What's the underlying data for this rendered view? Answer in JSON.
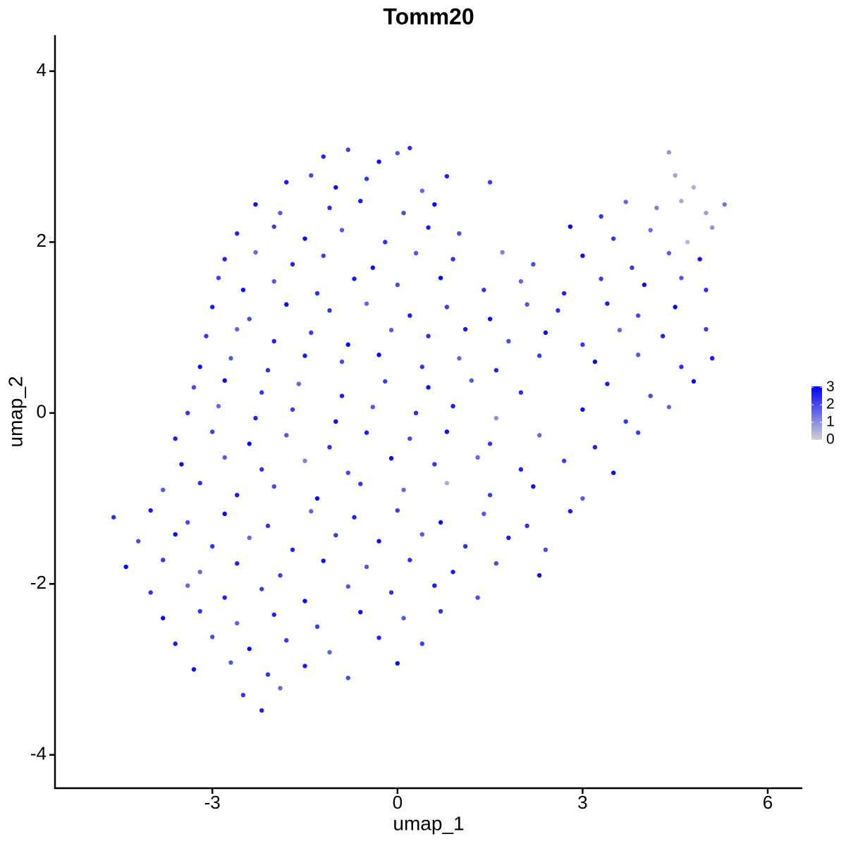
{
  "chart_data": {
    "type": "scatter",
    "title": "Tomm20",
    "xlabel": "umap_1",
    "ylabel": "umap_2",
    "xlim": [
      -5.55,
      6.56
    ],
    "ylim": [
      -4.39,
      4.42
    ],
    "xticks": [
      -3,
      0,
      3,
      6
    ],
    "yticks": [
      -4,
      -2,
      0,
      2,
      4
    ],
    "low_color": "#d3d3d3",
    "high_color": "#0000ff",
    "colorbar_lim": [
      0,
      3.05
    ],
    "colorbar_ticks": [
      0,
      1,
      2,
      3
    ],
    "x": [
      -1.2,
      -0.8,
      -0.3,
      0,
      0.2,
      4.4,
      -1.8,
      -1.4,
      -1.0,
      -0.5,
      0.4,
      0.8,
      1.5,
      4.5,
      4.8,
      -2.3,
      -1.9,
      -1.1,
      -0.6,
      0.1,
      0.6,
      3.3,
      3.7,
      4.2,
      4.6,
      5.0,
      5.3,
      -2.6,
      -2.0,
      -1.5,
      -0.9,
      -0.2,
      0.5,
      1.0,
      2.8,
      3.5,
      4.1,
      4.7,
      5.1,
      -2.8,
      -2.3,
      -1.7,
      -1.2,
      -0.4,
      0.3,
      0.9,
      1.7,
      2.2,
      3.0,
      3.8,
      4.4,
      4.9,
      -2.9,
      -2.5,
      -2.0,
      -1.3,
      -0.7,
      0,
      0.7,
      1.4,
      2.0,
      2.7,
      3.3,
      4.0,
      4.6,
      5.0,
      -3.0,
      -2.4,
      -1.8,
      -1.1,
      -0.5,
      0.2,
      0.8,
      1.5,
      2.1,
      2.6,
      3.4,
      3.9,
      4.5,
      -3.1,
      -2.6,
      -2.0,
      -1.4,
      -0.8,
      -0.1,
      0.5,
      1.1,
      1.8,
      2.4,
      3.0,
      3.6,
      4.3,
      5.0,
      -3.2,
      -2.7,
      -2.1,
      -1.5,
      -0.9,
      -0.3,
      0.4,
      1.0,
      1.6,
      2.3,
      3.2,
      3.9,
      4.6,
      5.1,
      -3.3,
      -2.8,
      -2.2,
      -1.6,
      -0.9,
      -0.2,
      0.5,
      1.2,
      2.0,
      3.4,
      4.1,
      4.8,
      -3.4,
      -2.9,
      -2.3,
      -1.7,
      -1.0,
      -0.4,
      0.3,
      0.9,
      1.6,
      3.0,
      3.7,
      4.4,
      -3.6,
      -3.0,
      -2.4,
      -1.8,
      -1.1,
      -0.5,
      0.2,
      0.8,
      1.5,
      2.3,
      3.2,
      3.9,
      -3.5,
      -2.8,
      -2.2,
      -1.5,
      -0.8,
      -0.1,
      0.6,
      1.3,
      2.0,
      2.7,
      3.5,
      -3.8,
      -3.2,
      -2.6,
      -2.0,
      -1.3,
      -0.6,
      0.1,
      0.8,
      1.5,
      2.2,
      3.0,
      -4.6,
      -4.0,
      -3.4,
      -2.8,
      -2.1,
      -1.4,
      -0.7,
      0,
      0.7,
      1.4,
      2.1,
      2.8,
      -4.2,
      -3.6,
      -3.0,
      -2.4,
      -1.7,
      -1.0,
      -0.3,
      0.4,
      1.1,
      1.8,
      2.4,
      -4.4,
      -3.8,
      -3.2,
      -2.6,
      -1.9,
      -1.2,
      -0.5,
      0.2,
      0.9,
      1.6,
      2.3,
      -4.0,
      -3.4,
      -2.8,
      -2.2,
      -1.5,
      -0.8,
      -0.1,
      0.6,
      1.3,
      -3.8,
      -3.2,
      -2.6,
      -2.0,
      -1.3,
      -0.6,
      0.1,
      0.7,
      -3.6,
      -3.0,
      -2.4,
      -1.8,
      -1.1,
      -0.3,
      0.4,
      -3.3,
      -2.7,
      -2.1,
      -1.5,
      -0.8,
      0,
      -2.5,
      -1.9,
      -2.2
    ],
    "y": [
      3.0,
      3.08,
      2.94,
      3.04,
      3.1,
      3.05,
      2.7,
      2.78,
      2.64,
      2.74,
      2.6,
      2.77,
      2.7,
      2.78,
      2.64,
      2.44,
      2.34,
      2.4,
      2.48,
      2.34,
      2.44,
      2.3,
      2.47,
      2.4,
      2.48,
      2.34,
      2.44,
      2.1,
      2.18,
      2.04,
      2.14,
      2.0,
      2.17,
      2.1,
      2.18,
      2.04,
      2.14,
      2.0,
      2.17,
      1.8,
      1.88,
      1.74,
      1.84,
      1.7,
      1.87,
      1.8,
      1.88,
      1.74,
      1.84,
      1.7,
      1.87,
      1.8,
      1.58,
      1.44,
      1.54,
      1.4,
      1.57,
      1.5,
      1.58,
      1.44,
      1.54,
      1.4,
      1.57,
      1.5,
      1.58,
      1.44,
      1.24,
      1.1,
      1.27,
      1.2,
      1.28,
      1.14,
      1.24,
      1.1,
      1.27,
      1.2,
      1.28,
      1.14,
      1.24,
      0.9,
      0.98,
      0.84,
      0.94,
      0.8,
      0.97,
      0.9,
      0.98,
      0.84,
      0.94,
      0.8,
      0.97,
      0.9,
      0.98,
      0.54,
      0.64,
      0.5,
      0.67,
      0.6,
      0.68,
      0.54,
      0.64,
      0.5,
      0.67,
      0.6,
      0.68,
      0.54,
      0.64,
      0.3,
      0.38,
      0.24,
      0.34,
      0.2,
      0.37,
      0.3,
      0.38,
      0.24,
      0.34,
      0.2,
      0.37,
      0,
      0.08,
      -0.06,
      0.04,
      -0.1,
      0.07,
      0,
      0.08,
      -0.06,
      0.04,
      -0.1,
      0.07,
      -0.3,
      -0.22,
      -0.36,
      -0.26,
      -0.4,
      -0.23,
      -0.3,
      -0.22,
      -0.36,
      -0.26,
      -0.4,
      -0.23,
      -0.6,
      -0.52,
      -0.66,
      -0.56,
      -0.7,
      -0.53,
      -0.6,
      -0.52,
      -0.66,
      -0.56,
      -0.7,
      -0.9,
      -0.82,
      -0.96,
      -0.86,
      -1.0,
      -0.83,
      -0.9,
      -0.82,
      -0.96,
      -0.86,
      -1.0,
      -1.22,
      -1.14,
      -1.28,
      -1.18,
      -1.32,
      -1.15,
      -1.22,
      -1.14,
      -1.28,
      -1.18,
      -1.32,
      -1.15,
      -1.5,
      -1.42,
      -1.56,
      -1.46,
      -1.6,
      -1.43,
      -1.5,
      -1.42,
      -1.56,
      -1.46,
      -1.6,
      -1.8,
      -1.72,
      -1.86,
      -1.76,
      -1.9,
      -1.73,
      -1.8,
      -1.72,
      -1.86,
      -1.76,
      -1.9,
      -2.1,
      -2.02,
      -2.16,
      -2.06,
      -2.2,
      -2.03,
      -2.1,
      -2.02,
      -2.16,
      -2.4,
      -2.32,
      -2.46,
      -2.36,
      -2.5,
      -2.33,
      -2.4,
      -2.32,
      -2.7,
      -2.62,
      -2.76,
      -2.66,
      -2.8,
      -2.63,
      -2.7,
      -3.0,
      -2.92,
      -3.06,
      -2.96,
      -3.1,
      -2.93,
      -3.3,
      -3.22,
      -3.48
    ],
    "expression": [
      2.6,
      2.2,
      2.9,
      1.8,
      2.4,
      0.9,
      2.7,
      2.0,
      3.0,
      2.3,
      1.6,
      2.6,
      2.2,
      0.7,
      0.5,
      2.9,
      1.8,
      2.4,
      2.7,
      2.0,
      3.0,
      2.3,
      1.6,
      1.2,
      0.6,
      0.8,
      1.4,
      2.6,
      2.2,
      2.9,
      1.8,
      2.4,
      2.7,
      2.0,
      3.0,
      2.3,
      1.5,
      0.4,
      0.9,
      2.6,
      1.6,
      2.6,
      2.2,
      2.9,
      1.8,
      2.4,
      1.2,
      2.0,
      3.0,
      2.3,
      1.7,
      2.8,
      2.2,
      2.9,
      1.8,
      2.4,
      2.7,
      2.0,
      3.0,
      2.3,
      1.6,
      2.6,
      2.2,
      2.9,
      1.8,
      2.4,
      2.7,
      2.0,
      3.0,
      2.3,
      1.6,
      2.6,
      2.2,
      2.9,
      1.8,
      2.4,
      2.7,
      2.0,
      3.0,
      2.3,
      1.6,
      2.6,
      2.2,
      2.9,
      1.8,
      2.4,
      2.7,
      2.0,
      3.0,
      2.3,
      1.6,
      2.6,
      2.2,
      2.9,
      1.8,
      2.4,
      2.7,
      2.0,
      3.0,
      2.3,
      1.6,
      2.6,
      2.2,
      2.9,
      1.8,
      2.4,
      2.7,
      2.0,
      3.0,
      2.3,
      1.6,
      2.6,
      2.2,
      2.9,
      1.8,
      2.4,
      2.7,
      2.0,
      3.0,
      2.3,
      1.6,
      2.6,
      2.2,
      2.9,
      1.8,
      2.4,
      2.7,
      1.0,
      3.0,
      2.3,
      1.6,
      2.6,
      2.2,
      2.9,
      1.8,
      2.4,
      2.7,
      2.0,
      3.0,
      2.3,
      1.6,
      2.6,
      2.2,
      2.9,
      1.8,
      2.4,
      1.2,
      2.0,
      3.0,
      2.3,
      1.6,
      2.6,
      2.2,
      2.9,
      1.8,
      2.4,
      2.7,
      2.0,
      3.0,
      2.3,
      1.6,
      0.6,
      2.2,
      2.9,
      1.8,
      2.4,
      2.7,
      2.0,
      3.0,
      2.3,
      1.6,
      2.6,
      2.2,
      2.9,
      1.8,
      2.4,
      2.7,
      2.0,
      3.0,
      2.3,
      1.6,
      2.6,
      2.2,
      2.9,
      1.8,
      2.4,
      2.7,
      2.0,
      3.0,
      2.3,
      1.6,
      2.6,
      2.2,
      2.9,
      1.8,
      2.4,
      2.7,
      2.0,
      3.0,
      2.3,
      1.6,
      2.6,
      2.2,
      2.9,
      1.8,
      2.4,
      2.7,
      2.0,
      3.0,
      2.3,
      1.6,
      2.6,
      2.2,
      2.9,
      1.8,
      2.4,
      2.7,
      2.0,
      3.0,
      2.3,
      1.6,
      2.6,
      2.2,
      2.9,
      1.8,
      2.4,
      2.7,
      2.0,
      3.0,
      2.3,
      1.6,
      2.6
    ]
  }
}
